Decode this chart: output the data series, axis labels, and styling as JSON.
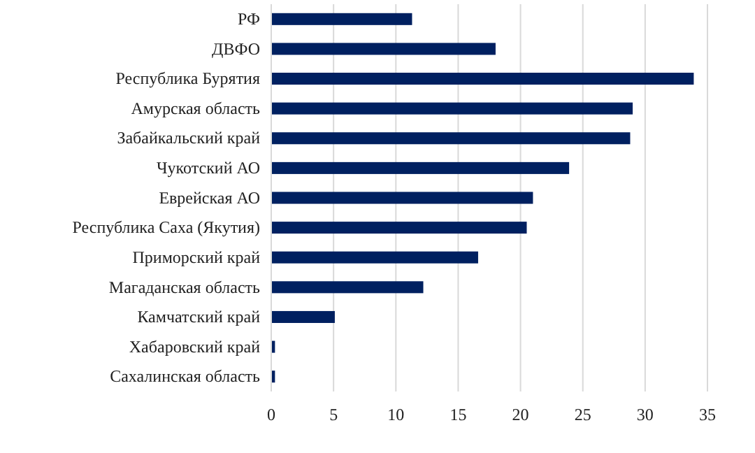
{
  "chart_data": {
    "type": "bar",
    "orientation": "horizontal",
    "categories": [
      "РФ",
      "ДВФО",
      "Республика Бурятия",
      "Амурская область",
      "Забайкальский край",
      "Чукотский АО",
      "Еврейская АО",
      "Республика Саха (Якутия)",
      "Приморский край",
      "Магаданская  область",
      "Камчатский край",
      "Хабаровский край",
      "Сахалинская  область"
    ],
    "values": [
      11.3,
      18.0,
      33.9,
      29.0,
      28.8,
      23.9,
      21.0,
      20.5,
      16.6,
      12.2,
      5.1,
      0.3,
      0.3
    ],
    "color": "#002060",
    "xlim": [
      0,
      35
    ],
    "xticks": [
      0,
      5,
      10,
      15,
      20,
      25,
      30,
      35
    ],
    "grid": "x"
  }
}
